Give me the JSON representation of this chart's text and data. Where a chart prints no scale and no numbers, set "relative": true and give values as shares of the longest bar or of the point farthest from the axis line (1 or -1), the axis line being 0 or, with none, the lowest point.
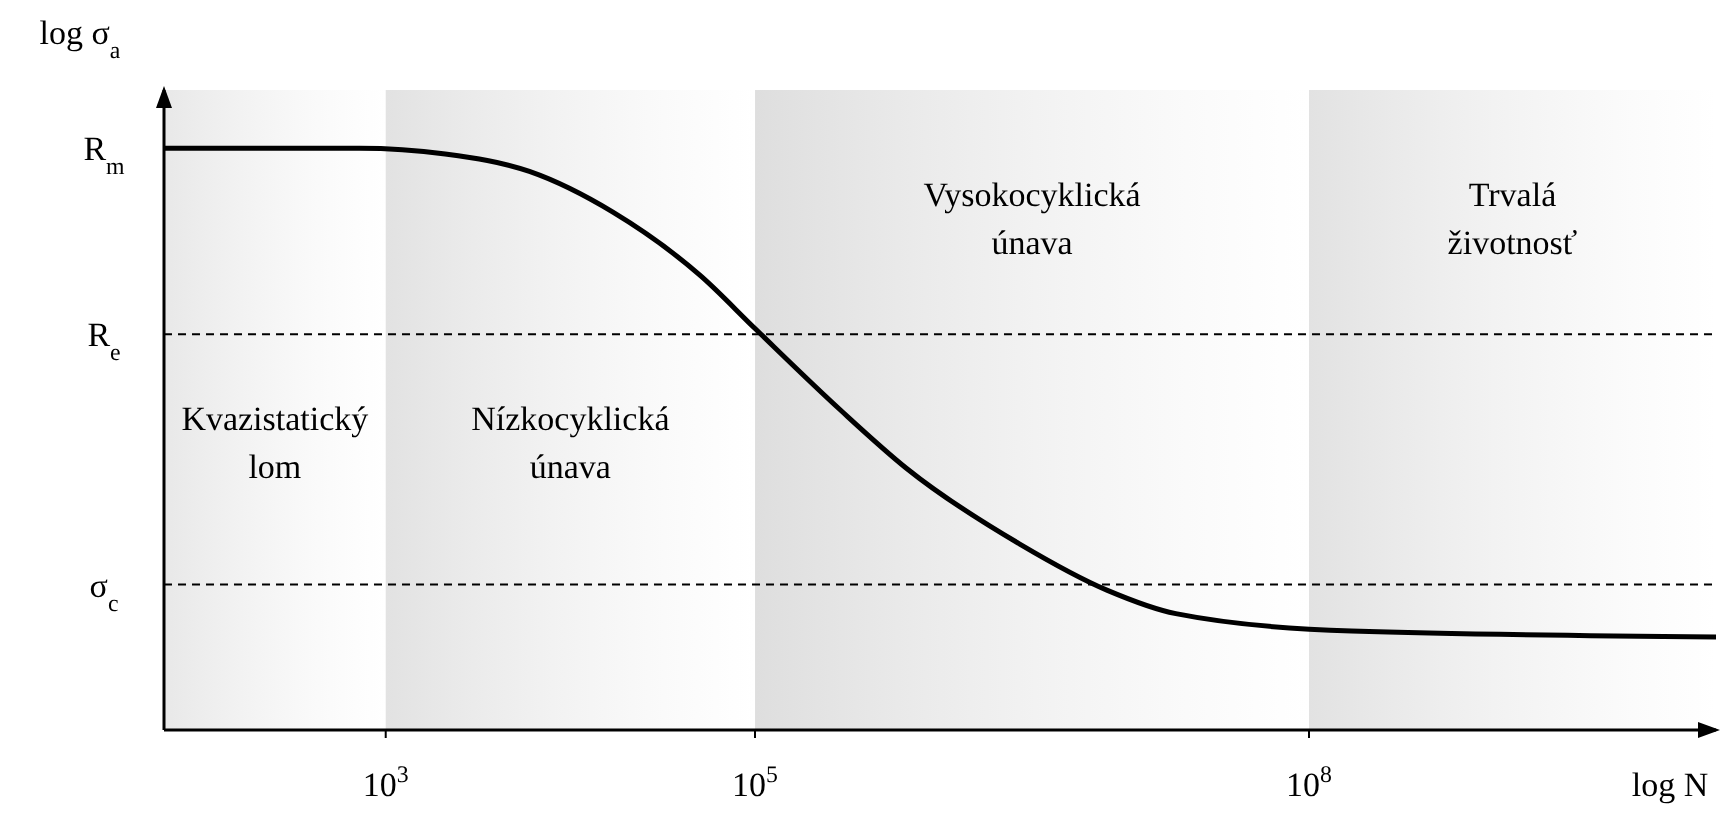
{
  "chart_data": {
    "type": "line",
    "xlabel": "log N",
    "ylabel": "log σ$_{a}$",
    "relative": true,
    "log": "x",
    "xlim": [
      63,
      16000000000
    ],
    "xticks": [
      {
        "value": 1000,
        "label": "10$^{3}$"
      },
      {
        "value": 100000,
        "label": "10$^{5}$"
      },
      {
        "value": 100000000,
        "label": "10$^{8}$"
      }
    ],
    "marker": "none",
    "line_style": "solid",
    "series": [
      {
        "color": "#000000",
        "x": [
          63,
          720,
          2100,
          6000,
          17000,
          51000,
          100000,
          290000,
          660000,
          2700000,
          8100000,
          19000000,
          170000000,
          16000000000
        ],
        "values": [
          1.0,
          1.0,
          0.99,
          0.96,
          0.89,
          0.78,
          0.69,
          0.55,
          0.45,
          0.32,
          0.24,
          0.2,
          0.17,
          0.16
        ]
      }
    ],
    "annotations": [
      {
        "text": "R$_{m}$",
        "x": 63,
        "y": 1.0
      }
    ],
    "ref_lines": [
      {
        "axis": "y",
        "value": 0.68,
        "label": "R$_{e}$",
        "line_style": "dashed",
        "color": "#000000"
      },
      {
        "axis": "y",
        "value": 0.25,
        "label": "σ$_{c}$",
        "line_style": "dashed",
        "color": "#000000"
      }
    ],
    "bands": [
      {
        "axis": "x",
        "from": 63,
        "to": 1000,
        "label": "Kvazistatický\nlom",
        "color": "#e8e8e8"
      },
      {
        "axis": "x",
        "from": 1000,
        "to": 100000,
        "label": "Nízkocyklická\núnava",
        "color": "#e2e2e2"
      },
      {
        "axis": "x",
        "from": 100000,
        "to": 100000000,
        "label": "Vysokocyklická\núnava",
        "color": "#dedede"
      },
      {
        "axis": "x",
        "from": 100000000,
        "to": 16000000000,
        "label": "Trvalá\nživotnosť",
        "color": "#e2e2e2"
      }
    ]
  }
}
